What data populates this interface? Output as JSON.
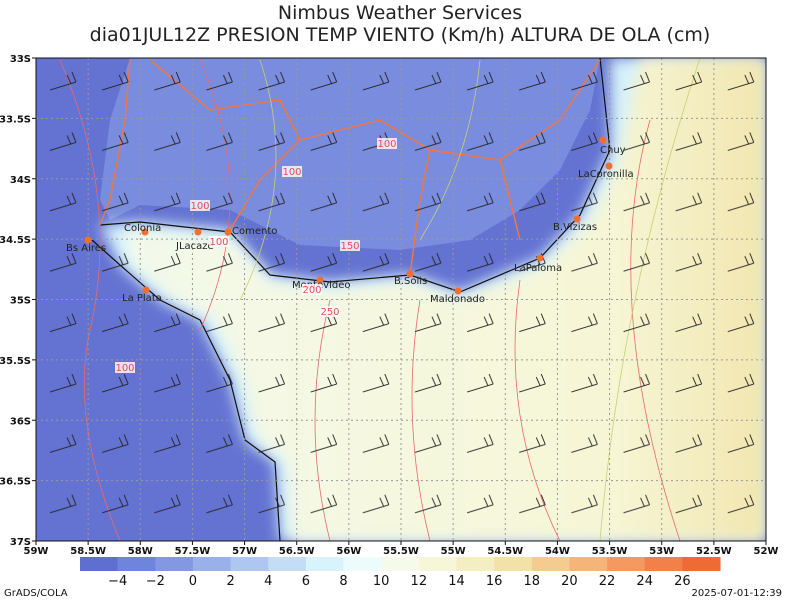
{
  "header": {
    "title": "Nimbus Weather Services",
    "subtitle": "dia01JUL12Z PRESION TEMP VIENTO (Km/h) ALTURA DE OLA (cm)"
  },
  "map": {
    "lat_labels": [
      "33S",
      "33.5S",
      "34S",
      "34.5S",
      "35S",
      "35.5S",
      "36S",
      "36.5S",
      "37S"
    ],
    "lon_labels": [
      "59W",
      "58.5W",
      "58W",
      "57.5W",
      "57W",
      "56.5W",
      "56W",
      "55.5W",
      "55W",
      "54.5W",
      "54W",
      "53.5W",
      "53W",
      "52.5W",
      "52W"
    ],
    "places": [
      "Bs Aires",
      "Colonia",
      "JLacaze",
      "Comento",
      "Montevideo",
      "La Plata",
      "B.Solis",
      "Maldonado",
      "LaPaloma",
      "B.Vizizas",
      "LaCoronilla",
      "Chuy"
    ],
    "contour_labels": [
      "100",
      "100",
      "100",
      "100",
      "100",
      "150",
      "200",
      "250"
    ]
  },
  "colorbar": {
    "labels": [
      "−4",
      "−2",
      "0",
      "2",
      "4",
      "6",
      "8",
      "10",
      "12",
      "14",
      "16",
      "18",
      "20",
      "22",
      "24",
      "26"
    ],
    "colors": [
      "#5f6fd0",
      "#6f84db",
      "#8298e3",
      "#99b0ea",
      "#afc6f0",
      "#c4dcf6",
      "#d9f3fc",
      "#ecfcfc",
      "#f5fbe8",
      "#f6f7d8",
      "#f3efc2",
      "#f3e2a8",
      "#f5cc90",
      "#f5b478",
      "#f49a60",
      "#f2804a",
      "#f06a35"
    ]
  },
  "footer": {
    "left": "GrADS/COLA",
    "right": "2025-07-01-12:39"
  }
}
